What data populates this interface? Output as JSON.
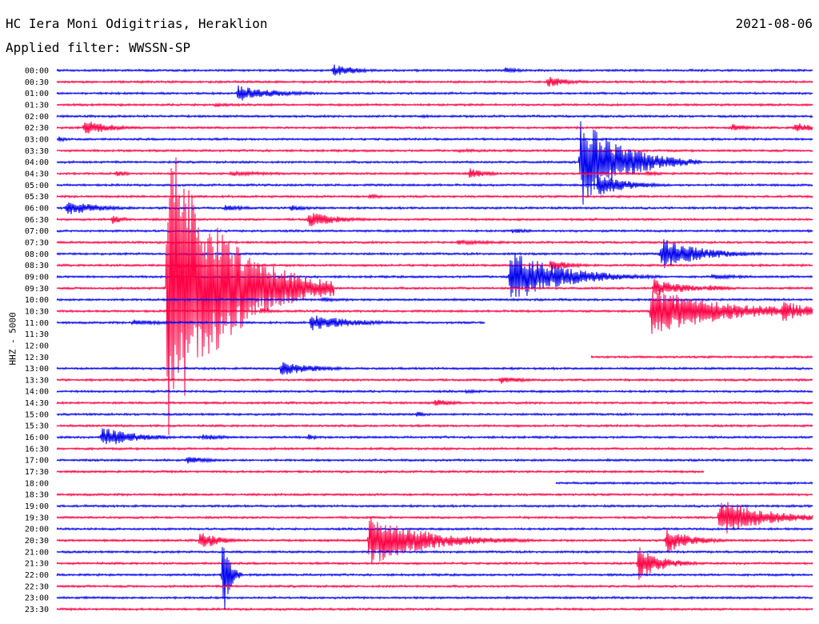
{
  "header": {
    "station": "HC Iera Moni Odigitrias, Heraklion",
    "date": "2021-08-06",
    "filter": "Applied filter: WWSSN-SP"
  },
  "chart_data": {
    "type": "line",
    "title": "HC Iera Moni Odigitrias, Heraklion",
    "ylabel": "HHZ - 5000",
    "row_labels": [
      "00:00",
      "00:30",
      "01:00",
      "01:30",
      "02:00",
      "02:30",
      "03:00",
      "03:30",
      "04:00",
      "04:30",
      "05:00",
      "05:30",
      "06:00",
      "06:30",
      "07:00",
      "07:30",
      "08:00",
      "08:30",
      "09:00",
      "09:30",
      "10:00",
      "10:30",
      "11:00",
      "11:30",
      "12:00",
      "12:30",
      "13:00",
      "13:30",
      "14:00",
      "14:30",
      "15:00",
      "15:30",
      "16:00",
      "16:30",
      "17:00",
      "17:30",
      "18:00",
      "18:30",
      "19:00",
      "19:30",
      "20:00",
      "20:30",
      "21:00",
      "21:30",
      "22:00",
      "22:30",
      "23:00",
      "23:30"
    ],
    "colors": [
      "#0000ee",
      "#ff0044"
    ],
    "gaps": [
      {
        "row": "11:00",
        "from_min": 17.0,
        "to_min": 30
      },
      {
        "row": "11:30",
        "from_min": 0,
        "to_min": 30
      },
      {
        "row": "12:00",
        "from_min": 0,
        "to_min": 30
      },
      {
        "row": "12:30",
        "from_min": 0,
        "to_min": 21.2
      },
      {
        "row": "17:30",
        "from_min": 25.7,
        "to_min": 30
      },
      {
        "row": "18:00",
        "from_min": 0,
        "to_min": 19.8
      }
    ],
    "events": [
      {
        "row": "00:00",
        "t": 11.0,
        "amp": 8,
        "dur": 1.0
      },
      {
        "row": "00:00",
        "t": 17.8,
        "amp": 4,
        "dur": 0.8
      },
      {
        "row": "00:30",
        "t": 19.5,
        "amp": 7,
        "dur": 0.9
      },
      {
        "row": "00:30",
        "t": 12.5,
        "amp": 2,
        "dur": 0.5
      },
      {
        "row": "01:00",
        "t": 7.2,
        "amp": 10,
        "dur": 1.6
      },
      {
        "row": "01:30",
        "t": 6.3,
        "amp": 3,
        "dur": 0.8
      },
      {
        "row": "02:00",
        "t": 14.5,
        "amp": 2,
        "dur": 1.0
      },
      {
        "row": "02:30",
        "t": 1.1,
        "amp": 11,
        "dur": 1.0
      },
      {
        "row": "02:30",
        "t": 26.8,
        "amp": 5,
        "dur": 0.8
      },
      {
        "row": "02:30",
        "t": 29.3,
        "amp": 7,
        "dur": 0.8
      },
      {
        "row": "03:00",
        "t": 0.1,
        "amp": 4,
        "dur": 0.3
      },
      {
        "row": "03:30",
        "t": 16.0,
        "amp": 2,
        "dur": 3.5
      },
      {
        "row": "04:00",
        "t": 20.8,
        "amp": 58,
        "dur": 1.6
      },
      {
        "row": "04:30",
        "t": 2.4,
        "amp": 4,
        "dur": 0.5
      },
      {
        "row": "04:30",
        "t": 6.9,
        "amp": 3,
        "dur": 2.9
      },
      {
        "row": "04:30",
        "t": 16.4,
        "amp": 7,
        "dur": 0.7
      },
      {
        "row": "04:30",
        "t": 23.4,
        "amp": 3,
        "dur": 0.8
      },
      {
        "row": "05:00",
        "t": 21.5,
        "amp": 14,
        "dur": 1.2
      },
      {
        "row": "05:30",
        "t": 12.4,
        "amp": 3,
        "dur": 0.7
      },
      {
        "row": "06:00",
        "t": 0.4,
        "amp": 9,
        "dur": 1.4
      },
      {
        "row": "06:00",
        "t": 6.7,
        "amp": 4,
        "dur": 1.0
      },
      {
        "row": "06:00",
        "t": 9.3,
        "amp": 4,
        "dur": 0.9
      },
      {
        "row": "06:30",
        "t": 2.2,
        "amp": 6,
        "dur": 0.5
      },
      {
        "row": "06:30",
        "t": 10.0,
        "amp": 10,
        "dur": 1.2
      },
      {
        "row": "07:00",
        "t": 18.1,
        "amp": 3,
        "dur": 1.0
      },
      {
        "row": "07:30",
        "t": 15.9,
        "amp": 3,
        "dur": 2.5
      },
      {
        "row": "08:00",
        "t": 24.0,
        "amp": 20,
        "dur": 1.6
      },
      {
        "row": "08:30",
        "t": 4.7,
        "amp": 4,
        "dur": 1.2
      },
      {
        "row": "08:30",
        "t": 19.6,
        "amp": 7,
        "dur": 0.9
      },
      {
        "row": "09:00",
        "t": 18.0,
        "amp": 34,
        "dur": 2.0
      },
      {
        "row": "09:00",
        "t": 26.0,
        "amp": 3,
        "dur": 2.0
      },
      {
        "row": "09:30",
        "t": 4.4,
        "amp": 190,
        "dur": 2.2
      },
      {
        "row": "09:30",
        "t": 23.7,
        "amp": 12,
        "dur": 1.2
      },
      {
        "row": "09:30",
        "t": 25.9,
        "amp": 4,
        "dur": 1.0
      },
      {
        "row": "10:00",
        "t": 10.5,
        "amp": 3,
        "dur": 1.4
      },
      {
        "row": "10:30",
        "t": 23.6,
        "amp": 30,
        "dur": 3.0
      },
      {
        "row": "10:30",
        "t": 28.8,
        "amp": 14,
        "dur": 1.2
      },
      {
        "row": "10:30",
        "t": 8.1,
        "amp": 4,
        "dur": 0.6
      },
      {
        "row": "11:00",
        "t": 10.1,
        "amp": 10,
        "dur": 1.8
      },
      {
        "row": "11:00",
        "t": 3.0,
        "amp": 4,
        "dur": 1.5
      },
      {
        "row": "13:00",
        "t": 8.9,
        "amp": 9,
        "dur": 1.4
      },
      {
        "row": "13:30",
        "t": 17.6,
        "amp": 5,
        "dur": 1.0
      },
      {
        "row": "14:00",
        "t": 16.2,
        "amp": 2,
        "dur": 2.0
      },
      {
        "row": "14:30",
        "t": 15.0,
        "amp": 5,
        "dur": 0.8
      },
      {
        "row": "15:00",
        "t": 14.3,
        "amp": 4,
        "dur": 0.4
      },
      {
        "row": "16:00",
        "t": 1.8,
        "amp": 13,
        "dur": 1.4
      },
      {
        "row": "16:00",
        "t": 5.8,
        "amp": 4,
        "dur": 1.2
      },
      {
        "row": "16:00",
        "t": 10.0,
        "amp": 4,
        "dur": 0.4
      },
      {
        "row": "17:00",
        "t": 5.2,
        "amp": 5,
        "dur": 1.0
      },
      {
        "row": "19:30",
        "t": 26.3,
        "amp": 25,
        "dur": 1.8
      },
      {
        "row": "20:30",
        "t": 5.7,
        "amp": 12,
        "dur": 0.8
      },
      {
        "row": "20:30",
        "t": 12.4,
        "amp": 32,
        "dur": 2.2
      },
      {
        "row": "20:30",
        "t": 24.2,
        "amp": 16,
        "dur": 1.0
      },
      {
        "row": "21:30",
        "t": 23.1,
        "amp": 22,
        "dur": 0.9
      },
      {
        "row": "22:00",
        "t": 6.6,
        "amp": 60,
        "dur": 0.25
      }
    ]
  }
}
